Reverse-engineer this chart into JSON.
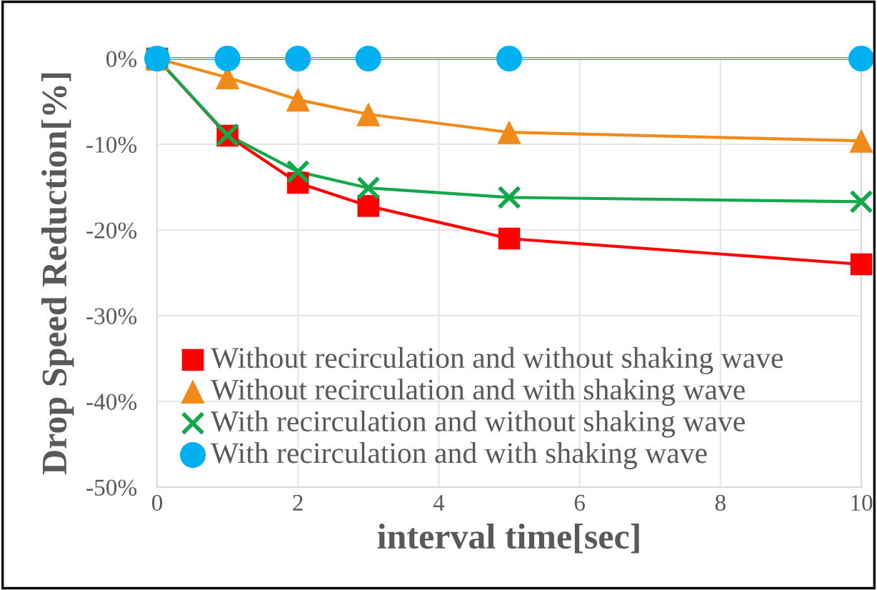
{
  "chart_data": {
    "type": "line",
    "xlabel": "interval time[sec]",
    "ylabel": "Drop Speed Reduction[%]",
    "x": [
      0,
      1,
      2,
      3,
      5,
      10
    ],
    "series": [
      {
        "name": "Without recirculation and without shaking wave",
        "color": "#ff0000",
        "marker": "square",
        "values": [
          0,
          -9,
          -14.5,
          -17.2,
          -21,
          -24
        ]
      },
      {
        "name": "Without recirculation and with shaking wave",
        "color": "#f08a1a",
        "marker": "triangle",
        "values": [
          0,
          -2.2,
          -4.8,
          -6.5,
          -8.6,
          -9.6
        ]
      },
      {
        "name": "With recirculation and without shaking wave",
        "color": "#13a84a",
        "marker": "cross",
        "values": [
          0,
          -8.9,
          -13.2,
          -15.1,
          -16.2,
          -16.7
        ]
      },
      {
        "name": "With recirculation and with shaking wave",
        "color": "#00b0f0",
        "marker": "circle",
        "values": [
          0,
          0,
          0,
          0,
          0,
          0
        ]
      }
    ],
    "xlim": [
      0,
      10
    ],
    "xticks": [
      0,
      2,
      4,
      6,
      8,
      10
    ],
    "ylim": [
      -50,
      0
    ],
    "yticks": [
      {
        "value": 0,
        "label": "0%"
      },
      {
        "value": -10,
        "label": "-10%"
      },
      {
        "value": -20,
        "label": "-20%"
      },
      {
        "value": -30,
        "label": "-30%"
      },
      {
        "value": -40,
        "label": "-40%"
      },
      {
        "value": -50,
        "label": "-50%"
      }
    ],
    "grid": true,
    "legend": "bottom left",
    "line_style": "solid"
  }
}
